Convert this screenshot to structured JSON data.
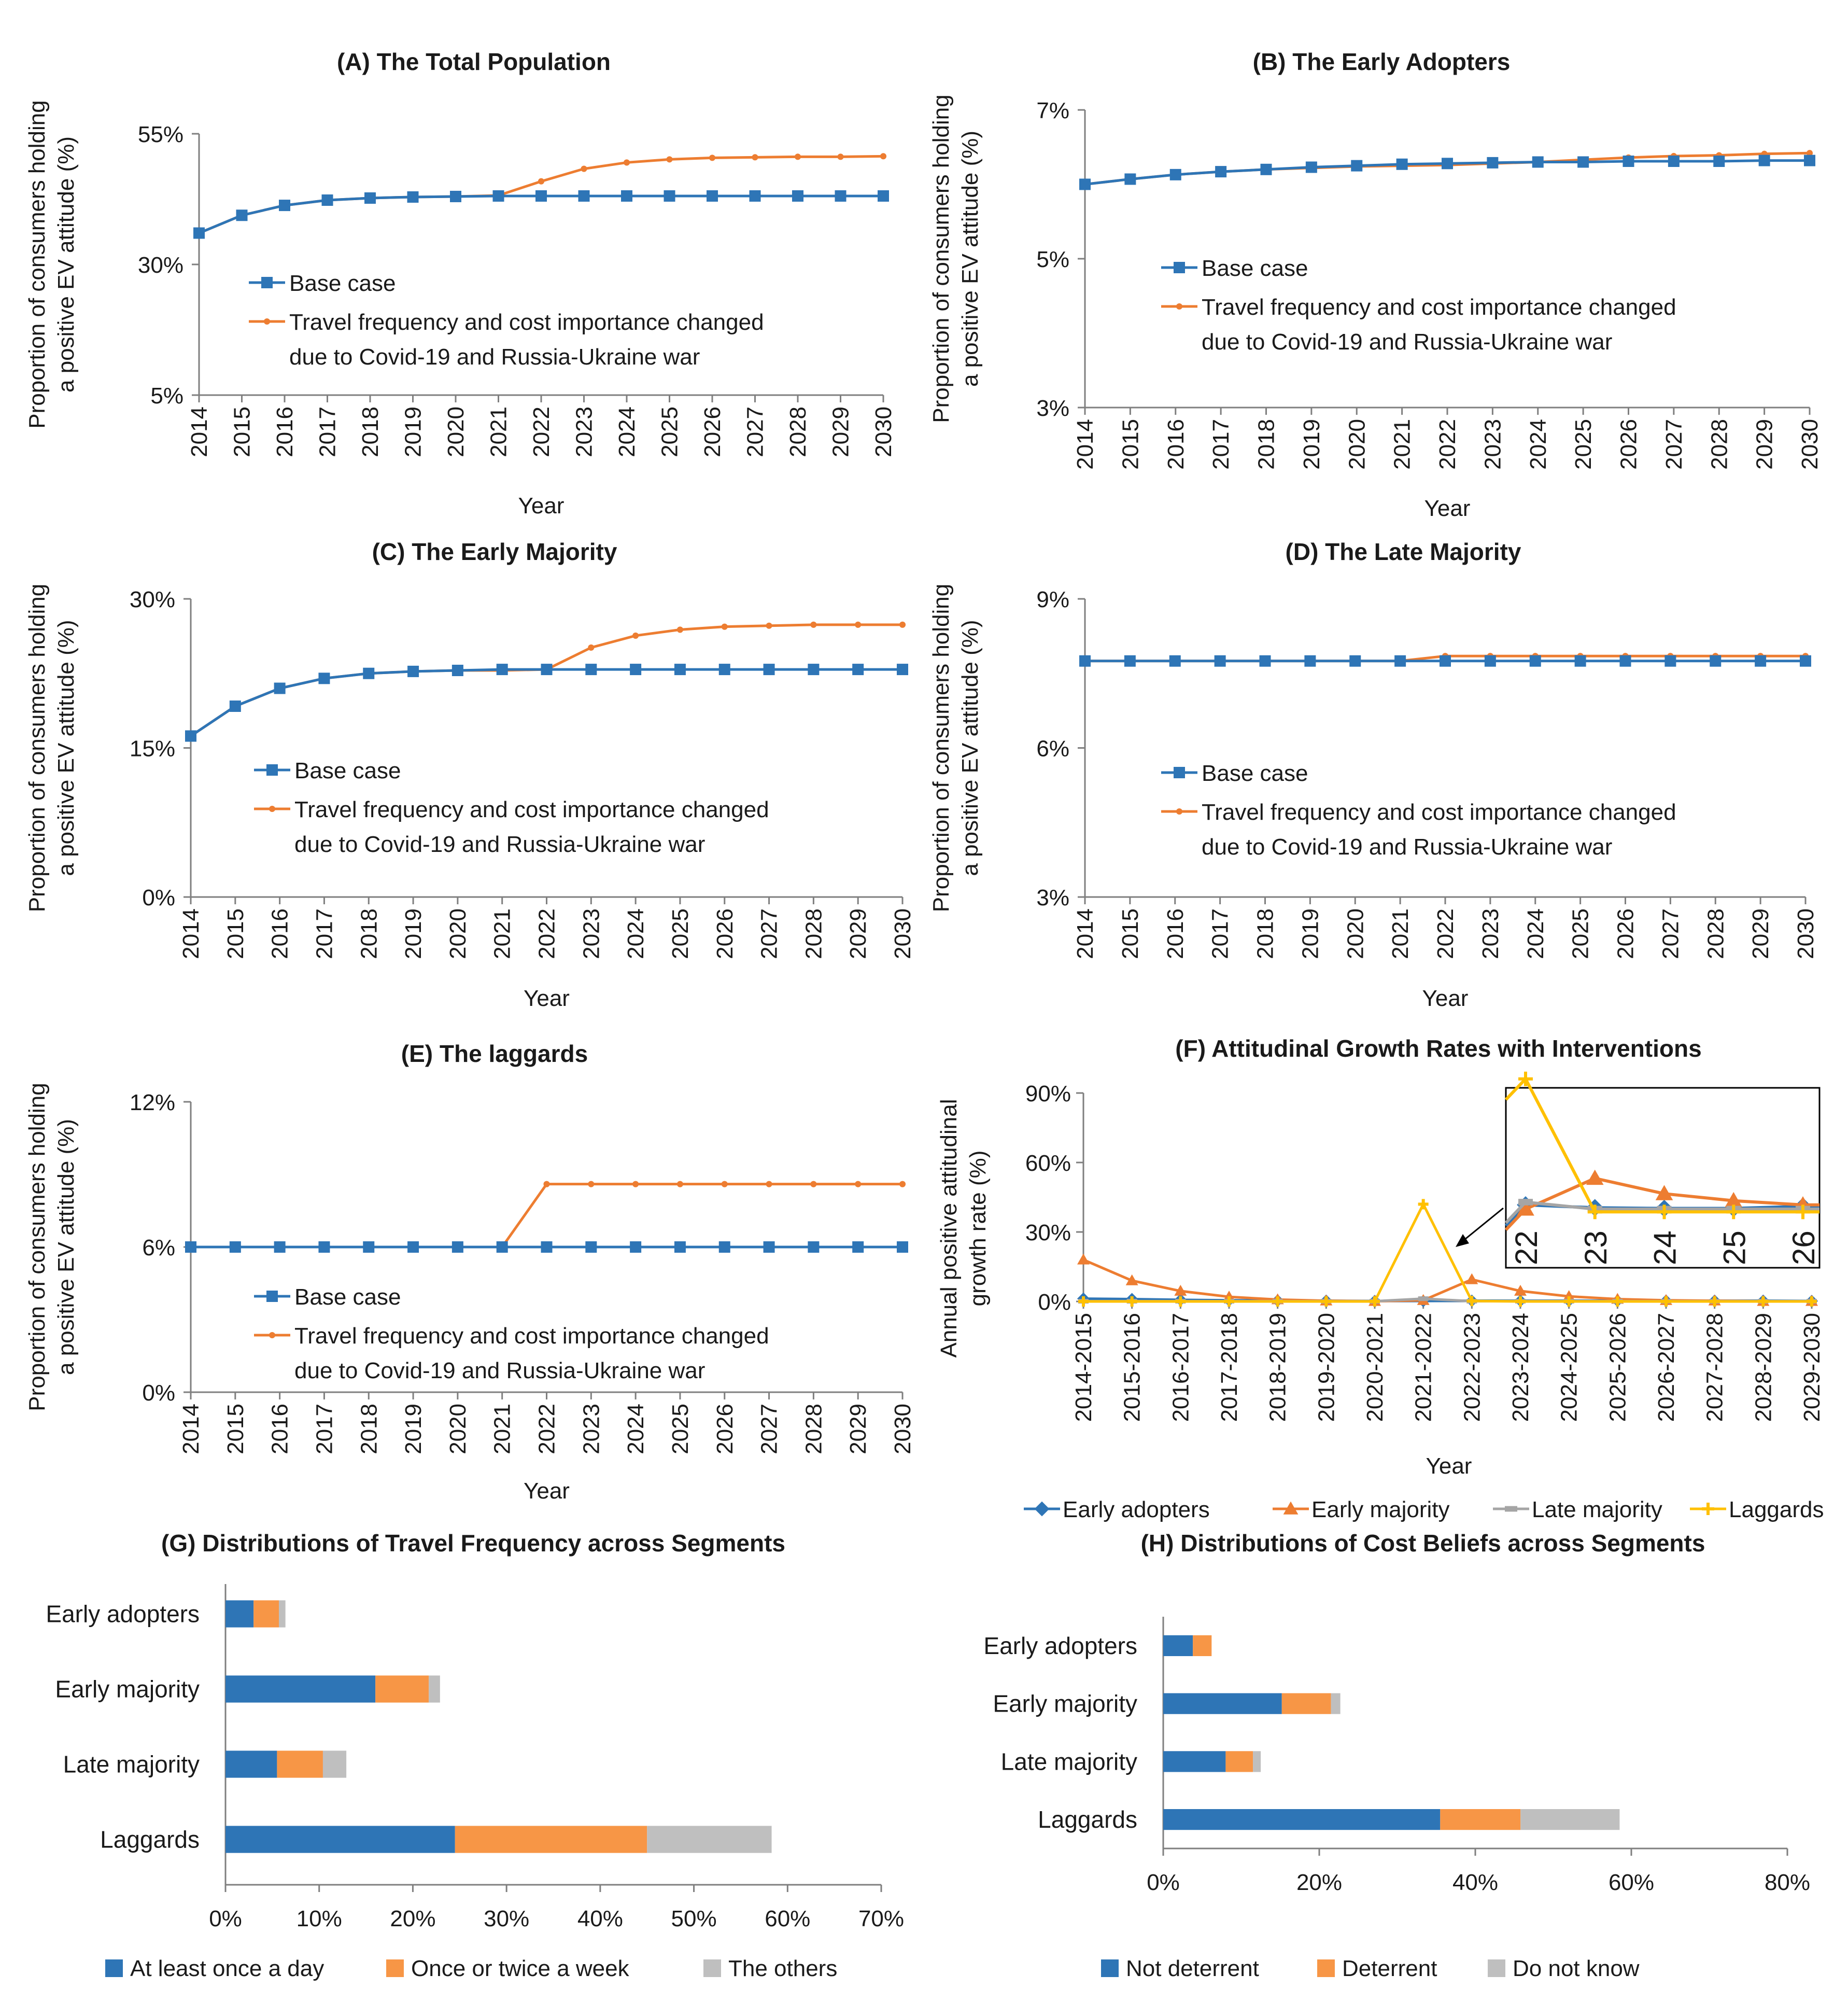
{
  "colors": {
    "blue": "#2E75B6",
    "orange": "#ED7D31",
    "gray": "#A5A5A5",
    "yellow": "#FFC000",
    "orange_bar": "#F79646",
    "gray_bar": "#BFBFBF",
    "axis": "#7f7f7f",
    "text": "#1a1a1a"
  },
  "chart_data": [
    {
      "id": "A",
      "type": "line",
      "title": "(A) The Total Population",
      "ylabel": [
        "Proportion of consumers holding",
        "a positive EV attitude (%)"
      ],
      "xlabel": "Year",
      "x": [
        "2014",
        "2015",
        "2016",
        "2017",
        "2018",
        "2019",
        "2020",
        "2021",
        "2022",
        "2023",
        "2024",
        "2025",
        "2026",
        "2027",
        "2028",
        "2029",
        "2030"
      ],
      "ylim": [
        5,
        55
      ],
      "yticks": [
        5,
        30,
        55
      ],
      "ytick_labels": [
        "5%",
        "30%",
        "55%"
      ],
      "legend": [
        "Base case",
        "Travel frequency and cost importance changed",
        "due to Covid-19 and Russia-Ukraine war"
      ],
      "series": [
        {
          "name": "Base case",
          "color": "blue",
          "marker": "square",
          "values": [
            36.0,
            39.4,
            41.3,
            42.3,
            42.7,
            42.9,
            43.0,
            43.1,
            43.1,
            43.1,
            43.1,
            43.1,
            43.1,
            43.1,
            43.1,
            43.1,
            43.1
          ]
        },
        {
          "name": "Travel frequency and cost importance changed due to Covid-19 and Russia-Ukraine war",
          "color": "orange",
          "marker": "circle",
          "values": [
            36.0,
            39.4,
            41.3,
            42.3,
            42.7,
            42.9,
            43.0,
            43.2,
            45.9,
            48.3,
            49.5,
            50.1,
            50.4,
            50.5,
            50.6,
            50.6,
            50.7
          ]
        }
      ]
    },
    {
      "id": "B",
      "type": "line",
      "title": "(B) The Early Adopters",
      "ylabel": [
        "Proportion of consumers holding",
        "a positive EV attitude (%)"
      ],
      "xlabel": "Year",
      "x": [
        "2014",
        "2015",
        "2016",
        "2017",
        "2018",
        "2019",
        "2020",
        "2021",
        "2022",
        "2023",
        "2024",
        "2025",
        "2026",
        "2027",
        "2028",
        "2029",
        "2030"
      ],
      "ylim": [
        3,
        7
      ],
      "yticks": [
        3,
        5,
        7
      ],
      "ytick_labels": [
        "3%",
        "5%",
        "7%"
      ],
      "legend": [
        "Base case",
        "Travel frequency and cost importance changed",
        "due to Covid-19 and Russia-Ukraine war"
      ],
      "series": [
        {
          "name": "Base case",
          "color": "blue",
          "marker": "square",
          "values": [
            6.0,
            6.07,
            6.13,
            6.17,
            6.2,
            6.23,
            6.25,
            6.27,
            6.28,
            6.29,
            6.3,
            6.3,
            6.31,
            6.31,
            6.31,
            6.32,
            6.32
          ]
        },
        {
          "name": "Travel frequency and cost importance changed due to Covid-19 and Russia-Ukraine war",
          "color": "orange",
          "marker": "circle",
          "values": [
            6.0,
            6.07,
            6.13,
            6.17,
            6.2,
            6.22,
            6.24,
            6.25,
            6.26,
            6.28,
            6.3,
            6.33,
            6.36,
            6.38,
            6.39,
            6.41,
            6.42
          ]
        }
      ]
    },
    {
      "id": "C",
      "type": "line",
      "title": "(C) The Early Majority",
      "ylabel": [
        "Proportion of consumers holding",
        "a positive EV attitude (%)"
      ],
      "xlabel": "Year",
      "x": [
        "2014",
        "2015",
        "2016",
        "2017",
        "2018",
        "2019",
        "2020",
        "2021",
        "2022",
        "2023",
        "2024",
        "2025",
        "2026",
        "2027",
        "2028",
        "2029",
        "2030"
      ],
      "ylim": [
        0,
        30
      ],
      "yticks": [
        0,
        15,
        30
      ],
      "ytick_labels": [
        "0%",
        "15%",
        "30%"
      ],
      "legend": [
        "Base case",
        "Travel frequency and cost importance changed",
        "due to Covid-19 and Russia-Ukraine war"
      ],
      "series": [
        {
          "name": "Base case",
          "color": "blue",
          "marker": "square",
          "values": [
            16.2,
            19.2,
            21.0,
            22.0,
            22.5,
            22.7,
            22.8,
            22.9,
            22.9,
            22.9,
            22.9,
            22.9,
            22.9,
            22.9,
            22.9,
            22.9,
            22.9
          ]
        },
        {
          "name": "Travel frequency and cost importance changed due to Covid-19 and Russia-Ukraine war",
          "color": "orange",
          "marker": "circle",
          "values": [
            16.2,
            19.2,
            21.0,
            22.0,
            22.5,
            22.7,
            22.8,
            22.8,
            22.9,
            25.1,
            26.3,
            26.9,
            27.2,
            27.3,
            27.4,
            27.4,
            27.4
          ]
        }
      ]
    },
    {
      "id": "D",
      "type": "line",
      "title": "(D) The Late Majority",
      "ylabel": [
        "Proportion of consumers holding",
        "a positive EV attitude (%)"
      ],
      "xlabel": "Year",
      "x": [
        "2014",
        "2015",
        "2016",
        "2017",
        "2018",
        "2019",
        "2020",
        "2021",
        "2022",
        "2023",
        "2024",
        "2025",
        "2026",
        "2027",
        "2028",
        "2029",
        "2030"
      ],
      "ylim": [
        3,
        9
      ],
      "yticks": [
        3,
        6,
        9
      ],
      "ytick_labels": [
        "3%",
        "6%",
        "9%"
      ],
      "legend": [
        "Base case",
        "Travel frequency and cost importance changed",
        "due to Covid-19 and Russia-Ukraine war"
      ],
      "series": [
        {
          "name": "Base case",
          "color": "blue",
          "marker": "square",
          "values": [
            7.75,
            7.75,
            7.75,
            7.75,
            7.75,
            7.75,
            7.75,
            7.75,
            7.75,
            7.75,
            7.75,
            7.75,
            7.75,
            7.75,
            7.75,
            7.75,
            7.75
          ]
        },
        {
          "name": "Travel frequency and cost importance changed due to Covid-19 and Russia-Ukraine war",
          "color": "orange",
          "marker": "circle",
          "values": [
            7.75,
            7.75,
            7.75,
            7.75,
            7.75,
            7.75,
            7.75,
            7.75,
            7.85,
            7.85,
            7.85,
            7.85,
            7.85,
            7.85,
            7.85,
            7.85,
            7.85
          ]
        }
      ]
    },
    {
      "id": "E",
      "type": "line",
      "title": "(E) The laggards",
      "ylabel": [
        "Proportion of consumers holding",
        "a positive EV attitude (%)"
      ],
      "xlabel": "Year",
      "x": [
        "2014",
        "2015",
        "2016",
        "2017",
        "2018",
        "2019",
        "2020",
        "2021",
        "2022",
        "2023",
        "2024",
        "2025",
        "2026",
        "2027",
        "2028",
        "2029",
        "2030"
      ],
      "ylim": [
        0,
        12
      ],
      "yticks": [
        0,
        6,
        12
      ],
      "ytick_labels": [
        "0%",
        "6%",
        "12%"
      ],
      "legend": [
        "Base case",
        "Travel frequency and cost importance changed",
        "due to Covid-19 and Russia-Ukraine war"
      ],
      "series": [
        {
          "name": "Base case",
          "color": "blue",
          "marker": "square",
          "values": [
            6.0,
            6.0,
            6.0,
            6.0,
            6.0,
            6.0,
            6.0,
            6.0,
            6.0,
            6.0,
            6.0,
            6.0,
            6.0,
            6.0,
            6.0,
            6.0,
            6.0
          ]
        },
        {
          "name": "Travel frequency and cost importance changed due to Covid-19 and Russia-Ukraine war",
          "color": "orange",
          "marker": "circle",
          "values": [
            6.0,
            6.0,
            6.0,
            6.0,
            6.0,
            6.0,
            6.0,
            6.0,
            8.6,
            8.6,
            8.6,
            8.6,
            8.6,
            8.6,
            8.6,
            8.6,
            8.6
          ]
        }
      ]
    },
    {
      "id": "F",
      "type": "line",
      "title": "(F) Attitudinal Growth Rates with Interventions",
      "ylabel": [
        "Annual positive attitudinal",
        "growth rate (%)"
      ],
      "xlabel": "Year",
      "x": [
        "2014-2015",
        "2015-2016",
        "2016-2017",
        "2017-2018",
        "2018-2019",
        "2019-2020",
        "2020-2021",
        "2021-2022",
        "2022-2023",
        "2023-2024",
        "2024-2025",
        "2025-2026",
        "2026-2027",
        "2027-2028",
        "2028-2029",
        "2029-2030"
      ],
      "ylim": [
        0,
        90
      ],
      "yticks": [
        0,
        30,
        60,
        90
      ],
      "ytick_labels": [
        "0%",
        "30%",
        "60%",
        "90%"
      ],
      "series": [
        {
          "name": "Early adopters",
          "color": "blue",
          "marker": "diamond",
          "values": [
            1.2,
            1.0,
            0.7,
            0.5,
            0.4,
            0.3,
            0.2,
            0.2,
            0.3,
            0.3,
            0.3,
            0.3,
            0.3,
            0.3,
            0.3,
            0.2
          ]
        },
        {
          "name": "Early majority",
          "color": "orange",
          "marker": "triangle",
          "values": [
            18.0,
            9.0,
            4.5,
            2.0,
            0.8,
            0.3,
            0.1,
            0.5,
            9.5,
            4.5,
            2.2,
            1.0,
            0.5,
            0.3,
            0.1,
            0.1
          ]
        },
        {
          "name": "Late majority",
          "color": "gray",
          "marker": "dash",
          "values": [
            0.1,
            0.1,
            0.1,
            0.1,
            0.1,
            0.1,
            0.1,
            1.2,
            0.1,
            0.1,
            0.1,
            0.1,
            0.1,
            0.1,
            0.1,
            0.1
          ]
        },
        {
          "name": "Laggards",
          "color": "yellow",
          "marker": "plus",
          "values": [
            0.0,
            0.0,
            0.0,
            0.0,
            0.0,
            0.0,
            0.0,
            42.0,
            0.2,
            0.0,
            0.0,
            0.0,
            0.0,
            0.0,
            0.0,
            0.0
          ]
        }
      ],
      "inset": {
        "x_labels": [
          "22",
          "23",
          "24",
          "25",
          "26"
        ],
        "series": [
          {
            "name": "Early adopters",
            "color": "blue",
            "marker": "diamond",
            "values": [
              0.6,
              0.4,
              0.35,
              0.35,
              0.5
            ]
          },
          {
            "name": "Early majority",
            "color": "orange",
            "marker": "triangle",
            "values": [
              0.3,
              2.5,
              1.4,
              0.9,
              0.6
            ]
          },
          {
            "name": "Late majority",
            "color": "gray",
            "marker": "dash",
            "values": [
              0.8,
              0.3,
              0.3,
              0.3,
              0.3
            ]
          },
          {
            "name": "Laggards",
            "color": "yellow",
            "marker": "plus",
            "values": [
              9.6,
              0.1,
              0.1,
              0.1,
              0.1
            ]
          }
        ]
      }
    },
    {
      "id": "G",
      "type": "bar",
      "orientation": "horizontal",
      "stacked": true,
      "title": "(G) Distributions of Travel Frequency across Segments",
      "categories": [
        "Early adopters",
        "Early majority",
        "Late majority",
        "Laggards"
      ],
      "xlim": [
        0,
        70
      ],
      "xticks": [
        0,
        10,
        20,
        30,
        40,
        50,
        60,
        70
      ],
      "xtick_labels": [
        "0%",
        "10%",
        "20%",
        "30%",
        "40%",
        "50%",
        "60%",
        "70%"
      ],
      "series": [
        {
          "name": "At least once a day",
          "color": "blue",
          "values": [
            3.0,
            16.0,
            5.5,
            24.5
          ]
        },
        {
          "name": "Once or twice a week",
          "color": "orange_bar",
          "values": [
            2.7,
            5.7,
            4.9,
            20.5
          ]
        },
        {
          "name": "The others",
          "color": "gray_bar",
          "values": [
            0.7,
            1.2,
            2.5,
            13.3
          ]
        }
      ]
    },
    {
      "id": "H",
      "type": "bar",
      "orientation": "horizontal",
      "stacked": true,
      "title": "(H) Distributions of Cost Beliefs across Segments",
      "categories": [
        "Early adopters",
        "Early majority",
        "Late majority",
        "Laggards"
      ],
      "xlim": [
        0,
        80
      ],
      "xticks": [
        0,
        20,
        40,
        60,
        80
      ],
      "xtick_labels": [
        "0%",
        "20%",
        "40%",
        "60%",
        "80%"
      ],
      "series": [
        {
          "name": "Not deterrent",
          "color": "blue",
          "values": [
            3.8,
            15.2,
            8.0,
            35.5
          ]
        },
        {
          "name": "Deterrent",
          "color": "orange_bar",
          "values": [
            2.4,
            6.3,
            3.5,
            10.3
          ]
        },
        {
          "name": "Do not know",
          "color": "gray_bar",
          "values": [
            0.0,
            1.2,
            1.0,
            12.7
          ]
        }
      ]
    }
  ]
}
